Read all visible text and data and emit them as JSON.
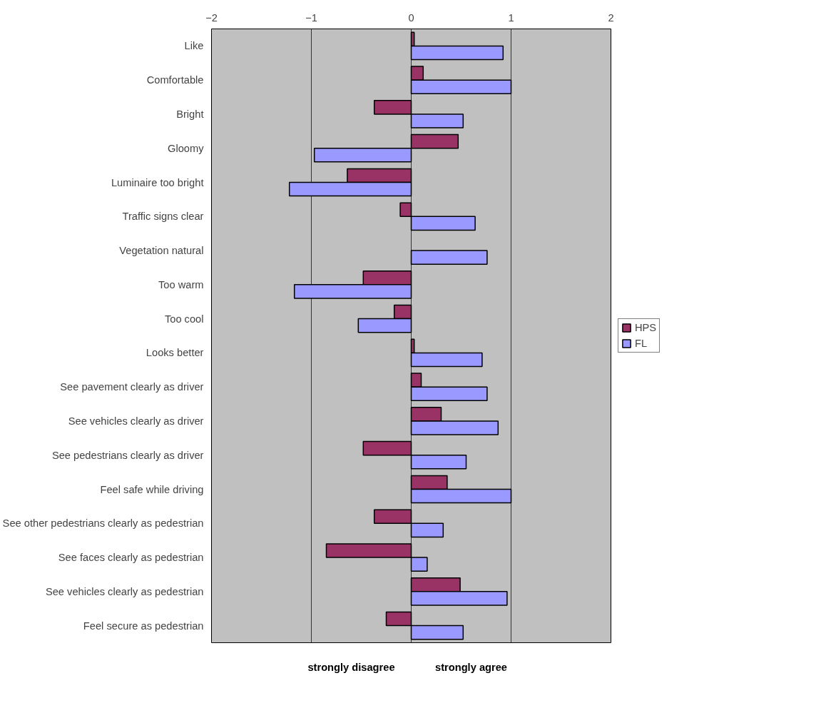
{
  "chart_data": {
    "type": "bar",
    "orientation": "horizontal",
    "categories": [
      "Like",
      "Comfortable",
      "Bright",
      "Gloomy",
      "Luminaire too bright",
      "Traffic signs clear",
      "Vegetation natural",
      "Too warm",
      "Too cool",
      "Looks better",
      "See pavement clearly as driver",
      "See vehicles clearly as driver",
      "See pedestrians clearly as driver",
      "Feel safe while driving",
      "See other pedestrians clearly as pedestrian",
      "See faces clearly as pedestrian",
      "See vehicles clearly as pedestrian",
      "Feel secure as pedestrian"
    ],
    "series": [
      {
        "name": "HPS",
        "color": "#993366",
        "values": [
          0.03,
          0.12,
          -0.37,
          0.47,
          -0.64,
          -0.11,
          null,
          -0.48,
          -0.17,
          0.03,
          0.1,
          0.3,
          -0.48,
          0.36,
          -0.37,
          -0.85,
          0.49,
          -0.25
        ]
      },
      {
        "name": "FL",
        "color": "#9999ff",
        "values": [
          0.92,
          1.0,
          0.52,
          -0.97,
          -1.22,
          0.64,
          0.76,
          -1.17,
          -0.53,
          0.71,
          0.76,
          0.87,
          0.55,
          1.0,
          0.32,
          0.16,
          0.96,
          0.52
        ]
      }
    ],
    "xlim": [
      -2,
      2
    ],
    "xticks": [
      -2,
      -1,
      0,
      1,
      2
    ],
    "grid": "x",
    "legend": "right",
    "annotations": [
      "strongly disagree",
      "strongly agree"
    ]
  }
}
